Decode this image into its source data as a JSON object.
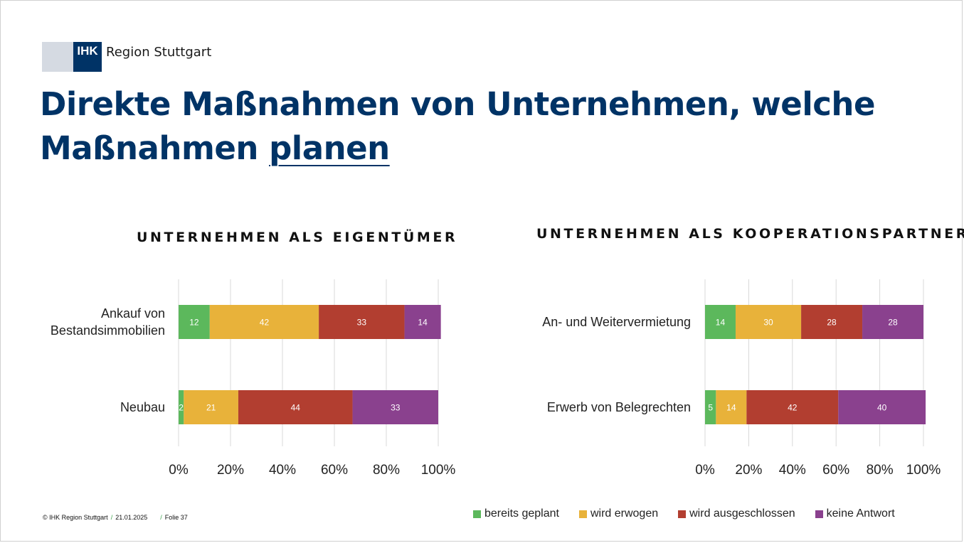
{
  "logo": {
    "box_text": "IHK",
    "text": "Region Stuttgart"
  },
  "title": {
    "line1": "Direkte Maßnahmen von Unternehmen, welche",
    "line2_prefix": "Maßnahmen ",
    "line2_underlined": "planen"
  },
  "footer": {
    "copyright": "© IHK Region Stuttgart",
    "date": "21.01.2025",
    "slide": "Folie 37",
    "separator": "/"
  },
  "colors": {
    "bereits_geplant": "#5cb85c",
    "wird_erwogen": "#e8b23a",
    "wird_ausgeschlossen": "#b23e30",
    "keine_antwort": "#8a418e",
    "title": "#003366"
  },
  "legend": [
    {
      "label": "bereits geplant",
      "color": "#5cb85c"
    },
    {
      "label": "wird erwogen",
      "color": "#e8b23a"
    },
    {
      "label": "wird ausgeschlossen",
      "color": "#b23e30"
    },
    {
      "label": "keine Antwort",
      "color": "#8a418e"
    }
  ],
  "chart_data": [
    {
      "type": "bar",
      "stacked": true,
      "orientation": "horizontal",
      "percent": true,
      "title": "UNTERNEHMEN ALS EIGENTÜMER",
      "categories": [
        [
          "Ankauf von",
          "Bestandsimmobilien"
        ],
        [
          "Neubau"
        ]
      ],
      "series": [
        {
          "name": "bereits geplant",
          "values": [
            12,
            2
          ]
        },
        {
          "name": "wird erwogen",
          "values": [
            42,
            21
          ]
        },
        {
          "name": "wird ausgeschlossen",
          "values": [
            33,
            44
          ]
        },
        {
          "name": "keine Antwort",
          "values": [
            14,
            33
          ]
        }
      ],
      "x_ticks": [
        "0%",
        "20%",
        "40%",
        "60%",
        "80%",
        "100%"
      ],
      "xlim": [
        0,
        100
      ],
      "grid": true
    },
    {
      "type": "bar",
      "stacked": true,
      "orientation": "horizontal",
      "percent": true,
      "title": "UNTERNEHMEN ALS KOOPERATIONSPARTNER",
      "categories": [
        [
          "An- und Weitervermietung"
        ],
        [
          "Erwerb von Belegrechten"
        ]
      ],
      "series": [
        {
          "name": "bereits geplant",
          "values": [
            14,
            5
          ]
        },
        {
          "name": "wird erwogen",
          "values": [
            30,
            14
          ]
        },
        {
          "name": "wird ausgeschlossen",
          "values": [
            28,
            42
          ]
        },
        {
          "name": "keine Antwort",
          "values": [
            28,
            40
          ]
        }
      ],
      "x_ticks": [
        "0%",
        "20%",
        "40%",
        "60%",
        "80%",
        "100%"
      ],
      "xlim": [
        0,
        100
      ],
      "grid": true
    }
  ]
}
